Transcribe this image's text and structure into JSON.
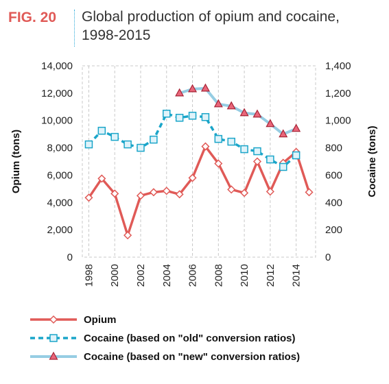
{
  "figure": {
    "label": "FIG. 20",
    "title": "Global production of opium and cocaine, 1998-2015"
  },
  "colors": {
    "opium": "#e05a57",
    "cocaine_old": "#1aa5c9",
    "cocaine_new": "#96cde3",
    "new_marker_fill": "#e9667a",
    "new_marker_stroke": "#a62436",
    "grid": "#c8c8c8"
  },
  "chart_data": {
    "type": "line",
    "title": "Global production of opium and cocaine, 1998-2015",
    "x_tick_labels": [
      "1998",
      "2000",
      "2002",
      "2004",
      "2006",
      "2008",
      "2010",
      "2012",
      "2014"
    ],
    "xlim": [
      1997.5,
      2015.5
    ],
    "ylabel_left": "Opium (tons)",
    "ylabel_right": "Cocaine (tons)",
    "ylim_left": [
      0,
      14000
    ],
    "ylim_right": [
      0,
      1400
    ],
    "y_tick_labels_left": [
      "0",
      "2,000",
      "4,000",
      "6,000",
      "8,000",
      "10,000",
      "12,000",
      "14,000"
    ],
    "y_tick_labels_right": [
      "0",
      "200",
      "400",
      "600",
      "800",
      "1,000",
      "1,200",
      "1,400"
    ],
    "y_ticks_left": [
      0,
      2000,
      4000,
      6000,
      8000,
      10000,
      12000,
      14000
    ],
    "y_ticks_right": [
      0,
      200,
      400,
      600,
      800,
      1000,
      1200,
      1400
    ],
    "grid": "vertical dashed",
    "legend_position": "bottom",
    "series": [
      {
        "name": "Opium",
        "axis": "left",
        "marker": "diamond",
        "x": [
          1998,
          1999,
          2000,
          2001,
          2002,
          2003,
          2004,
          2005,
          2006,
          2007,
          2008,
          2009,
          2010,
          2011,
          2012,
          2013,
          2014,
          2015
        ],
        "values": [
          4350,
          5750,
          4650,
          1600,
          4500,
          4750,
          4850,
          4600,
          5800,
          8100,
          6850,
          4950,
          4700,
          7000,
          4800,
          6900,
          7700,
          4750
        ]
      },
      {
        "name": "Cocaine (based on \"old\" conversion ratios)",
        "axis": "right",
        "marker": "square",
        "x": [
          1998,
          1999,
          2000,
          2001,
          2002,
          2003,
          2004,
          2005,
          2006,
          2007,
          2008,
          2009,
          2010,
          2011,
          2012,
          2013,
          2014
        ],
        "values": [
          825,
          925,
          880,
          825,
          800,
          860,
          1050,
          1020,
          1035,
          1025,
          865,
          845,
          790,
          775,
          715,
          660,
          745
        ]
      },
      {
        "name": "Cocaine (based on \"new\" conversion ratios)",
        "axis": "right",
        "marker": "triangle",
        "x": [
          2005,
          2006,
          2007,
          2008,
          2009,
          2010,
          2011,
          2012,
          2013,
          2014
        ],
        "values": [
          1200,
          1230,
          1235,
          1120,
          1105,
          1055,
          1045,
          975,
          900,
          940
        ]
      }
    ]
  }
}
